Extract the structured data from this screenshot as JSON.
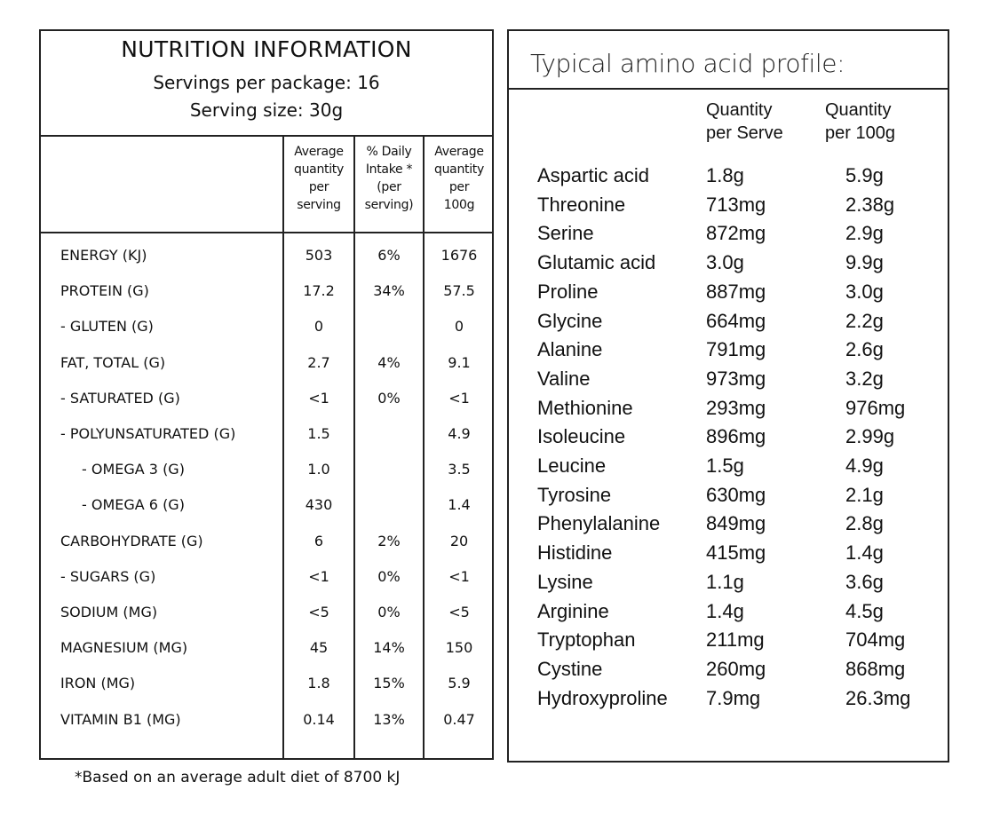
{
  "nutrition": {
    "title": "NUTRITION INFORMATION",
    "servings_per_package": "Servings per package: 16",
    "serving_size": "Serving size: 30g",
    "columns": [
      "Average\nquantity\nper\nserving",
      "% Daily\nIntake *\n(per\nserving)",
      "Average\nquantity\nper\n100g"
    ],
    "rows": [
      {
        "name": "ENERGY (KJ)",
        "serving": "503",
        "di": "6%",
        "per100": "1676"
      },
      {
        "name": "PROTEIN (G)",
        "serving": "17.2",
        "di": "34%",
        "per100": "57.5"
      },
      {
        "name": "- GLUTEN (G)",
        "serving": "0",
        "di": "",
        "per100": "0"
      },
      {
        "name": "FAT, TOTAL (G)",
        "serving": "2.7",
        "di": "4%",
        "per100": "9.1"
      },
      {
        "name": "- SATURATED (G)",
        "serving": "<1",
        "di": "0%",
        "per100": "<1"
      },
      {
        "name": "- POLYUNSATURATED (G)",
        "serving": "1.5",
        "di": "",
        "per100": "4.9"
      },
      {
        "name": "- OMEGA 3 (G)",
        "serving": "1.0",
        "di": "",
        "per100": "3.5",
        "indent": true
      },
      {
        "name": "- OMEGA 6 (G)",
        "serving": "430",
        "di": "",
        "per100": "1.4",
        "indent": true
      },
      {
        "name": "CARBOHYDRATE (G)",
        "serving": "6",
        "di": "2%",
        "per100": "20"
      },
      {
        "name": "- SUGARS (G)",
        "serving": "<1",
        "di": "0%",
        "per100": "<1"
      },
      {
        "name": "SODIUM (MG)",
        "serving": "<5",
        "di": "0%",
        "per100": "<5"
      },
      {
        "name": "MAGNESIUM (MG)",
        "serving": "45",
        "di": "14%",
        "per100": "150"
      },
      {
        "name": "IRON (MG)",
        "serving": "1.8",
        "di": "15%",
        "per100": "5.9"
      },
      {
        "name": "VITAMIN B1 (MG)",
        "serving": "0.14",
        "di": "13%",
        "per100": "0.47"
      }
    ],
    "footnote": "*Based on an average adult diet of 8700 kJ"
  },
  "amino": {
    "title": "Typical amino acid profile:",
    "col_serve": "Quantity\nper Serve",
    "col_100g": "Quantity\nper 100g",
    "rows": [
      {
        "name": "Aspartic acid",
        "serve": "1.8g",
        "per100": "5.9g"
      },
      {
        "name": "Threonine",
        "serve": "713mg",
        "per100": "2.38g"
      },
      {
        "name": "Serine",
        "serve": "872mg",
        "per100": "2.9g"
      },
      {
        "name": "Glutamic acid",
        "serve": "3.0g",
        "per100": "9.9g"
      },
      {
        "name": "Proline",
        "serve": "887mg",
        "per100": "3.0g"
      },
      {
        "name": "Glycine",
        "serve": "664mg",
        "per100": "2.2g"
      },
      {
        "name": "Alanine",
        "serve": "791mg",
        "per100": "2.6g"
      },
      {
        "name": "Valine",
        "serve": "973mg",
        "per100": "3.2g"
      },
      {
        "name": "Methionine",
        "serve": "293mg",
        "per100": "976mg"
      },
      {
        "name": "Isoleucine",
        "serve": "896mg",
        "per100": "2.99g"
      },
      {
        "name": "Leucine",
        "serve": "1.5g",
        "per100": "4.9g"
      },
      {
        "name": "Tyrosine",
        "serve": "630mg",
        "per100": "2.1g"
      },
      {
        "name": "Phenylalanine",
        "serve": "849mg",
        "per100": "2.8g"
      },
      {
        "name": "Histidine",
        "serve": "415mg",
        "per100": "1.4g"
      },
      {
        "name": "Lysine",
        "serve": "1.1g",
        "per100": "3.6g"
      },
      {
        "name": "Arginine",
        "serve": "1.4g",
        "per100": "4.5g"
      },
      {
        "name": "Tryptophan",
        "serve": "211mg",
        "per100": "704mg"
      },
      {
        "name": "Cystine",
        "serve": "260mg",
        "per100": "868mg"
      },
      {
        "name": "Hydroxyproline",
        "serve": "7.9mg",
        "per100": "26.3mg"
      }
    ]
  }
}
